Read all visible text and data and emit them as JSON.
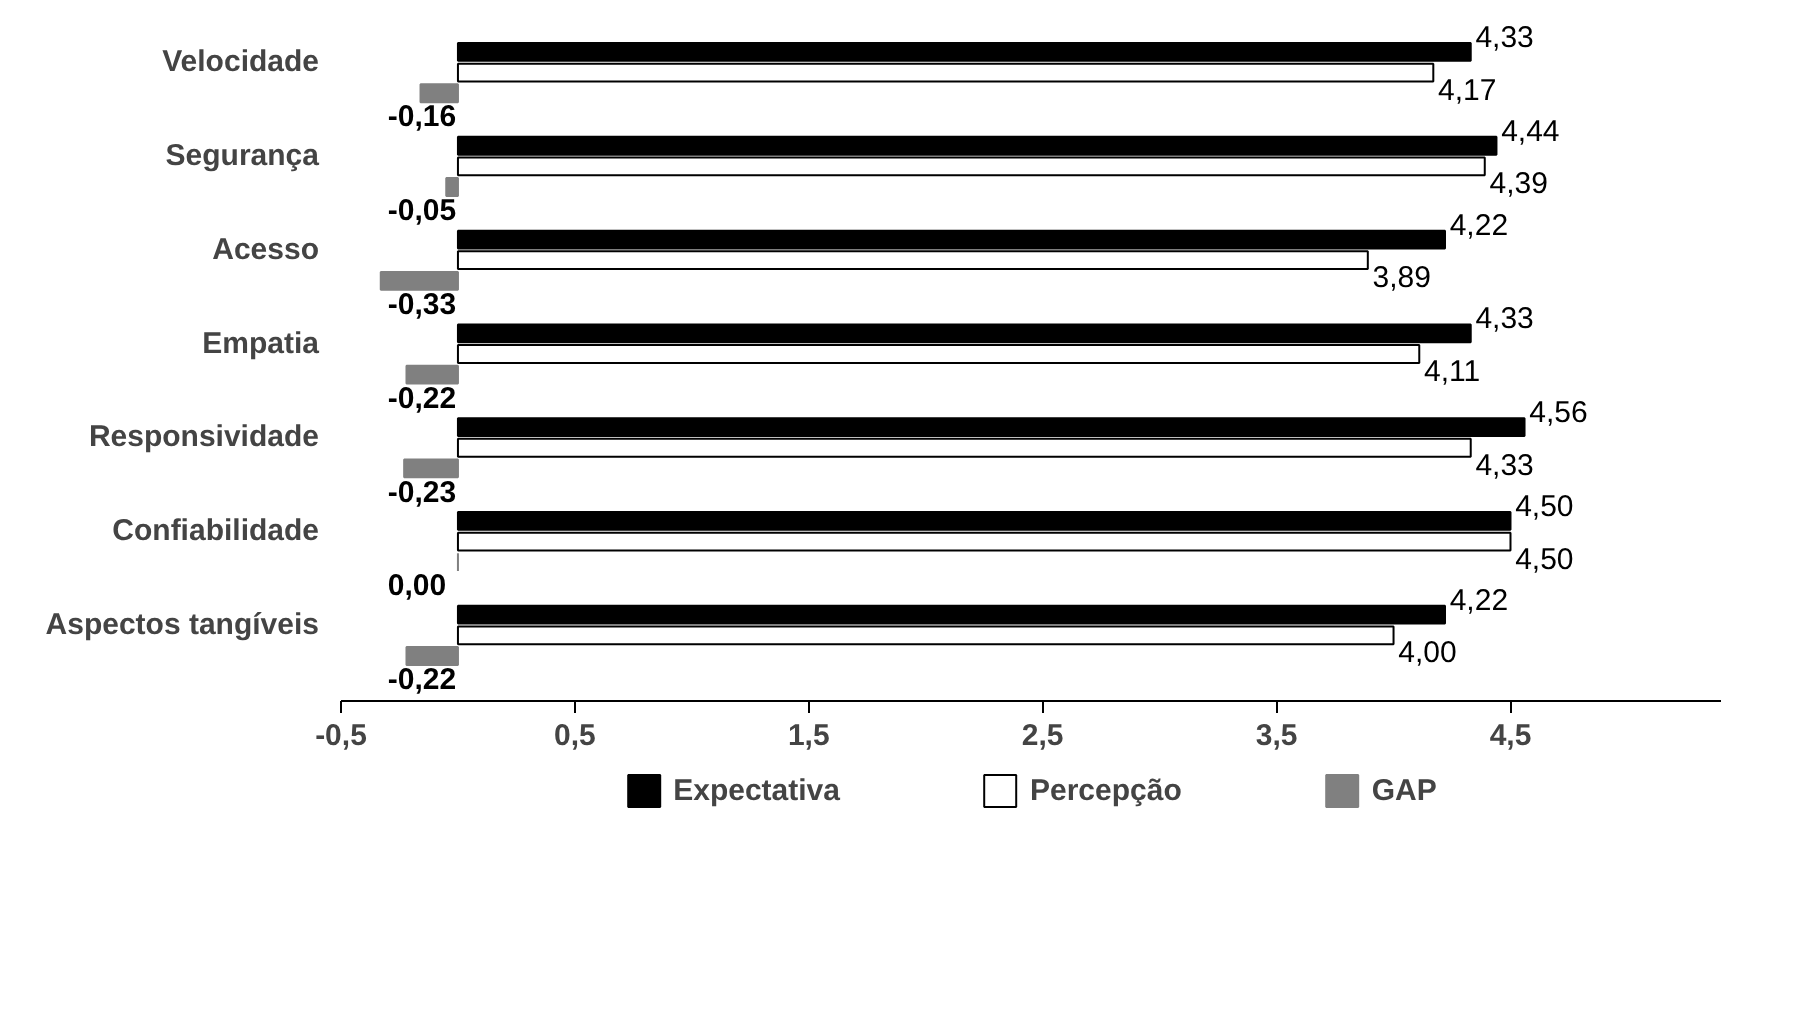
{
  "chart_data": {
    "type": "bar",
    "orientation": "horizontal",
    "categories": [
      "Velocidade",
      "Segurança",
      "Acesso",
      "Empatia",
      "Responsividade",
      "Confiabilidade",
      "Aspectos tangíveis"
    ],
    "series": [
      {
        "name": "Expectativa",
        "color": "#000000",
        "values": [
          4.33,
          4.44,
          4.22,
          4.33,
          4.56,
          4.5,
          4.22
        ],
        "value_labels": [
          "4,33",
          "4,44",
          "4,22",
          "4,33",
          "4,56",
          "4,50",
          "4,22"
        ]
      },
      {
        "name": "Percepção",
        "color": "#ffffff",
        "values": [
          4.17,
          4.39,
          3.89,
          4.11,
          4.33,
          4.5,
          4.0
        ],
        "value_labels": [
          "4,17",
          "4,39",
          "3,89",
          "4,11",
          "4,33",
          "4,50",
          "4,00"
        ]
      },
      {
        "name": "GAP",
        "color": "#808080",
        "values": [
          -0.16,
          -0.05,
          -0.33,
          -0.22,
          -0.23,
          0.0,
          -0.22
        ],
        "value_labels": [
          "-0,16",
          "-0,05",
          "-0,33",
          "-0,22",
          "-0,23",
          "0,00",
          "-0,22"
        ]
      }
    ],
    "xlim": [
      -0.5,
      5.4
    ],
    "xticks": [
      {
        "value": -0.5,
        "label": "-0,5"
      },
      {
        "value": 0.5,
        "label": "0,5"
      },
      {
        "value": 1.5,
        "label": "1,5"
      },
      {
        "value": 2.5,
        "label": "2,5"
      },
      {
        "value": 3.5,
        "label": "3,5"
      },
      {
        "value": 4.5,
        "label": "4,5"
      }
    ],
    "grid": false,
    "legend": "bottom"
  }
}
